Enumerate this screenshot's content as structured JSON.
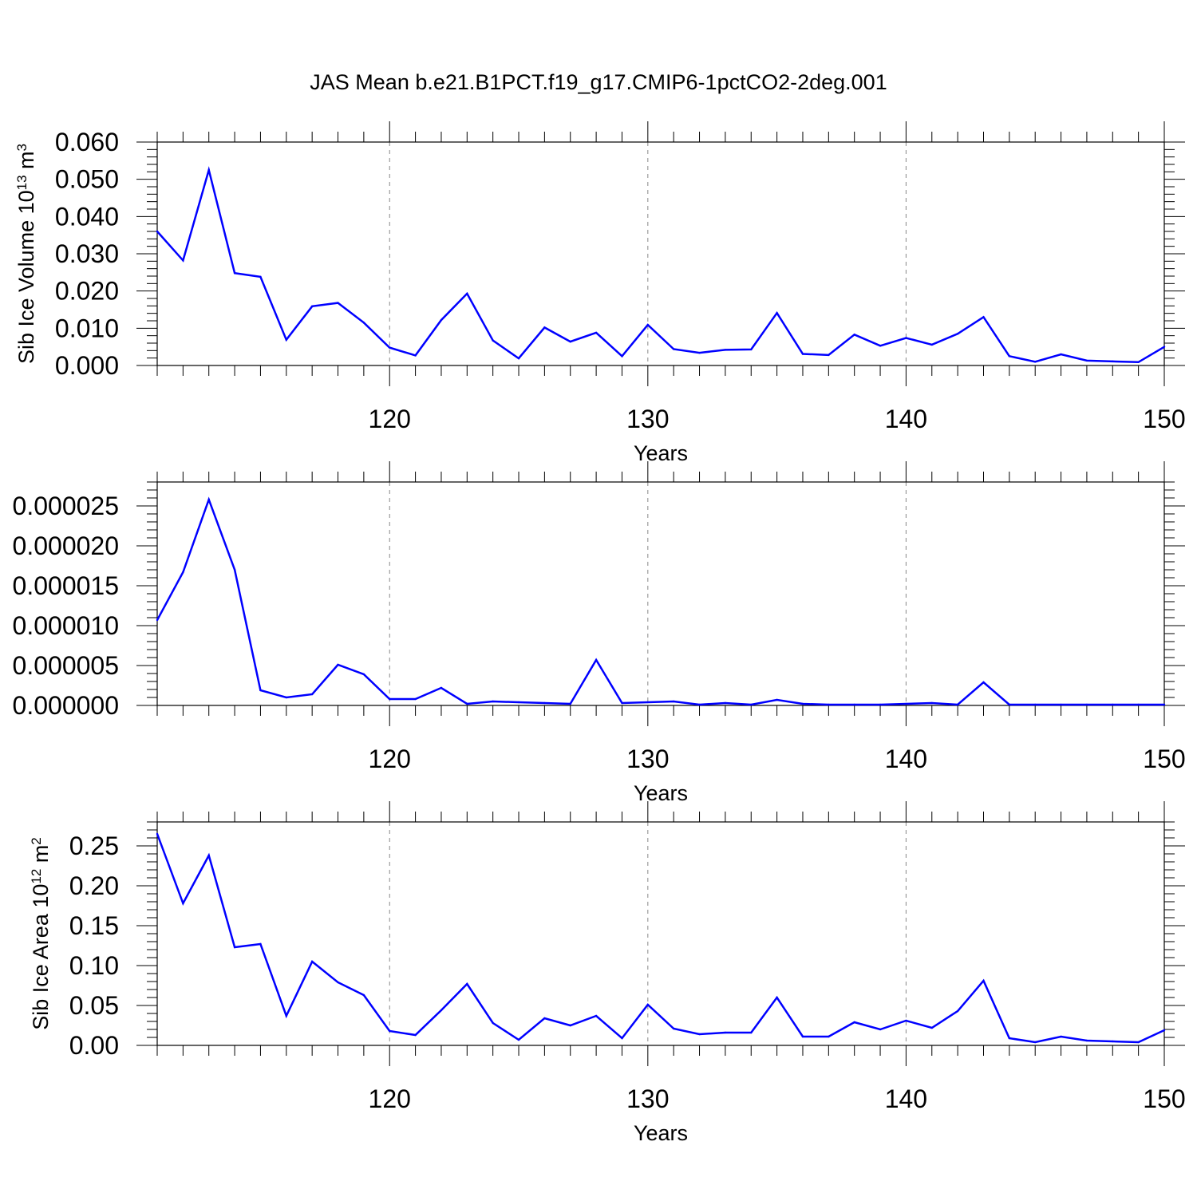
{
  "title": "JAS Mean b.e21.B1PCT.f19_g17.CMIP6-1pctCO2-2deg.001",
  "chart_data": [
    {
      "type": "line",
      "xlabel": "Years",
      "ylabel": "Sib Ice Volume 10",
      "ylabel_sup1": "13",
      "ylabel_mid": " m",
      "ylabel_sup2": "3",
      "xlim": [
        111,
        150
      ],
      "ylim": [
        0,
        0.06
      ],
      "xticks": [
        120,
        130,
        140,
        150
      ],
      "xtick_labels": [
        "120",
        "130",
        "140",
        "150"
      ],
      "yticks": [
        0,
        0.01,
        0.02,
        0.03,
        0.04,
        0.05,
        0.06
      ],
      "ytick_labels": [
        "0.000",
        "0.010",
        "0.020",
        "0.030",
        "0.040",
        "0.050",
        "0.060"
      ],
      "grid": "dashed vertical at major x ticks",
      "line_color": "#0000ff",
      "x": [
        111,
        112,
        113,
        114,
        115,
        116,
        117,
        118,
        119,
        120,
        121,
        122,
        123,
        124,
        125,
        126,
        127,
        128,
        129,
        130,
        131,
        132,
        133,
        134,
        135,
        136,
        137,
        138,
        139,
        140,
        141,
        142,
        143,
        144,
        145,
        146,
        147,
        148,
        149,
        150
      ],
      "values": [
        0.036,
        0.0282,
        0.0525,
        0.0248,
        0.0238,
        0.0069,
        0.0159,
        0.0168,
        0.0115,
        0.0048,
        0.0027,
        0.0122,
        0.0193,
        0.0067,
        0.0019,
        0.0102,
        0.0064,
        0.0088,
        0.0025,
        0.0109,
        0.0044,
        0.0034,
        0.0042,
        0.0043,
        0.0141,
        0.0031,
        0.0028,
        0.0083,
        0.0053,
        0.0074,
        0.0056,
        0.0085,
        0.013,
        0.0025,
        0.001,
        0.003,
        0.0013,
        0.0011,
        0.0009,
        0.005
      ]
    },
    {
      "type": "line",
      "xlabel": "Years",
      "ylabel": "",
      "xlim": [
        111,
        150
      ],
      "ylim": [
        0,
        2.8e-05
      ],
      "xticks": [
        120,
        130,
        140,
        150
      ],
      "xtick_labels": [
        "120",
        "130",
        "140",
        "150"
      ],
      "yticks": [
        0,
        5e-06,
        1e-05,
        1.5e-05,
        2e-05,
        2.5e-05
      ],
      "ytick_labels": [
        "0.000000",
        "0.000005",
        "0.000010",
        "0.000015",
        "0.000020",
        "0.000025"
      ],
      "grid": "dashed vertical at major x ticks",
      "line_color": "#0000ff",
      "x": [
        111,
        112,
        113,
        114,
        115,
        116,
        117,
        118,
        119,
        120,
        121,
        122,
        123,
        124,
        125,
        126,
        127,
        128,
        129,
        130,
        131,
        132,
        133,
        134,
        135,
        136,
        137,
        138,
        139,
        140,
        141,
        142,
        143,
        144,
        145,
        146,
        147,
        148,
        149,
        150
      ],
      "values": [
        1.07e-05,
        1.67e-05,
        2.58e-05,
        1.7e-05,
        1.9e-06,
        1e-06,
        1.4e-06,
        5.1e-06,
        3.9e-06,
        8e-07,
        8e-07,
        2.2e-06,
        2e-07,
        5e-07,
        4e-07,
        3e-07,
        2e-07,
        5.7e-06,
        3e-07,
        4e-07,
        5e-07,
        1e-07,
        3e-07,
        1e-07,
        7e-07,
        2e-07,
        1e-07,
        1e-07,
        1e-07,
        2e-07,
        3e-07,
        1e-07,
        2.9e-06,
        1e-07,
        1e-07,
        1e-07,
        1e-07,
        1e-07,
        1e-07,
        1e-07
      ]
    },
    {
      "type": "line",
      "xlabel": "Years",
      "ylabel": "Sib Ice Area 10",
      "ylabel_sup1": "12",
      "ylabel_mid": " m",
      "ylabel_sup2": "2",
      "xlim": [
        111,
        150
      ],
      "ylim": [
        0,
        0.28
      ],
      "xticks": [
        120,
        130,
        140,
        150
      ],
      "xtick_labels": [
        "120",
        "130",
        "140",
        "150"
      ],
      "yticks": [
        0,
        0.05,
        0.1,
        0.15,
        0.2,
        0.25
      ],
      "ytick_labels": [
        "0.00",
        "0.05",
        "0.10",
        "0.15",
        "0.20",
        "0.25"
      ],
      "grid": "dashed vertical at major x ticks",
      "line_color": "#0000ff",
      "x": [
        111,
        112,
        113,
        114,
        115,
        116,
        117,
        118,
        119,
        120,
        121,
        122,
        123,
        124,
        125,
        126,
        127,
        128,
        129,
        130,
        131,
        132,
        133,
        134,
        135,
        136,
        137,
        138,
        139,
        140,
        141,
        142,
        143,
        144,
        145,
        146,
        147,
        148,
        149,
        150
      ],
      "values": [
        0.265,
        0.178,
        0.238,
        0.123,
        0.127,
        0.037,
        0.105,
        0.079,
        0.063,
        0.018,
        0.013,
        0.044,
        0.077,
        0.028,
        0.007,
        0.034,
        0.025,
        0.037,
        0.009,
        0.051,
        0.021,
        0.014,
        0.016,
        0.016,
        0.06,
        0.011,
        0.011,
        0.029,
        0.02,
        0.031,
        0.022,
        0.043,
        0.081,
        0.009,
        0.004,
        0.011,
        0.006,
        0.005,
        0.004,
        0.019
      ]
    }
  ]
}
